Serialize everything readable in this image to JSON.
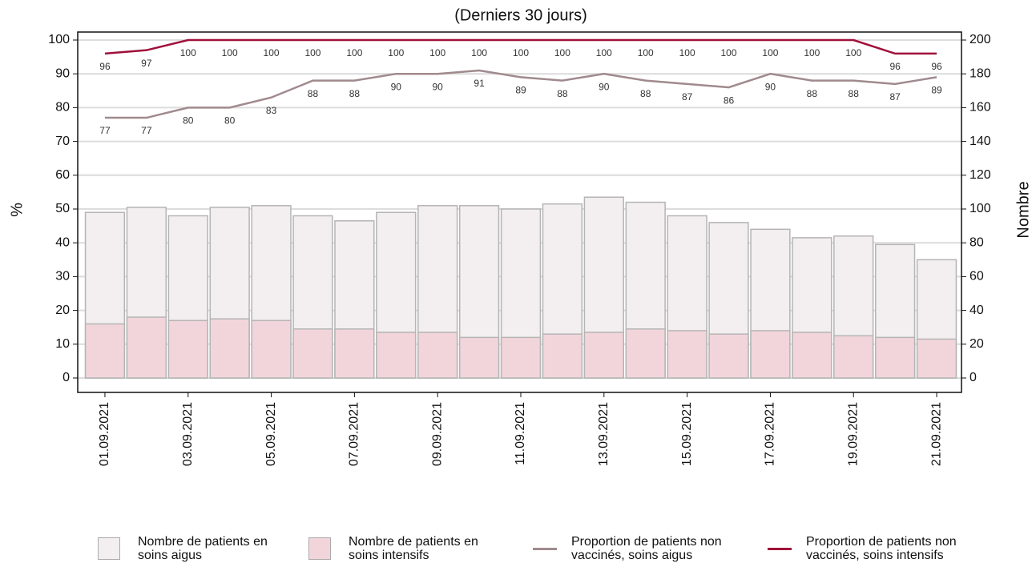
{
  "chart_data": {
    "type": "bar",
    "title": "(Derniers 30 jours)",
    "y_label": "%",
    "y2_label": "Nombre",
    "categories": [
      "01.09.2021",
      null,
      "03.09.2021",
      null,
      "05.09.2021",
      null,
      "07.09.2021",
      null,
      "09.09.2021",
      null,
      "11.09.2021",
      null,
      "13.09.2021",
      null,
      "15.09.2021",
      null,
      "17.09.2021",
      null,
      "19.09.2021",
      null,
      "21.09.2021"
    ],
    "ylim": [
      0,
      100
    ],
    "yticks": [
      0,
      10,
      20,
      30,
      40,
      50,
      60,
      70,
      80,
      90,
      100
    ],
    "y2lim": [
      0,
      200
    ],
    "y2ticks": [
      0,
      20,
      40,
      60,
      80,
      100,
      120,
      140,
      160,
      180,
      200
    ],
    "grid": true,
    "series": [
      {
        "name": "Nombre de patients en soins aigus",
        "type": "bar",
        "axis": "y2",
        "color": "#f3eeef",
        "values": [
          98,
          101,
          96,
          101,
          102,
          96,
          93,
          98,
          102,
          102,
          100,
          103,
          107,
          104,
          96,
          92,
          88,
          83,
          84,
          79,
          70
        ]
      },
      {
        "name": "Nombre de patients en soins intensifs",
        "type": "bar",
        "axis": "y2",
        "color": "#f2d5db",
        "values": [
          32,
          36,
          34,
          35,
          34,
          29,
          29,
          27,
          27,
          24,
          24,
          26,
          27,
          29,
          28,
          26,
          28,
          27,
          25,
          24,
          23
        ]
      },
      {
        "name": "Proportion de patients non vaccinés, soins aigus",
        "type": "line",
        "color": "#a08a8e",
        "values": [
          77,
          77,
          80,
          80,
          83,
          88,
          88,
          90,
          90,
          91,
          89,
          88,
          90,
          88,
          87,
          86,
          90,
          88,
          88,
          87,
          89
        ]
      },
      {
        "name": "Proportion de patients non vaccinés, soins intensifs",
        "type": "line",
        "color": "#a0103a",
        "values": [
          96,
          97,
          100,
          100,
          100,
          100,
          100,
          100,
          100,
          100,
          100,
          100,
          100,
          100,
          100,
          100,
          100,
          100,
          100,
          96,
          96
        ]
      }
    ]
  }
}
